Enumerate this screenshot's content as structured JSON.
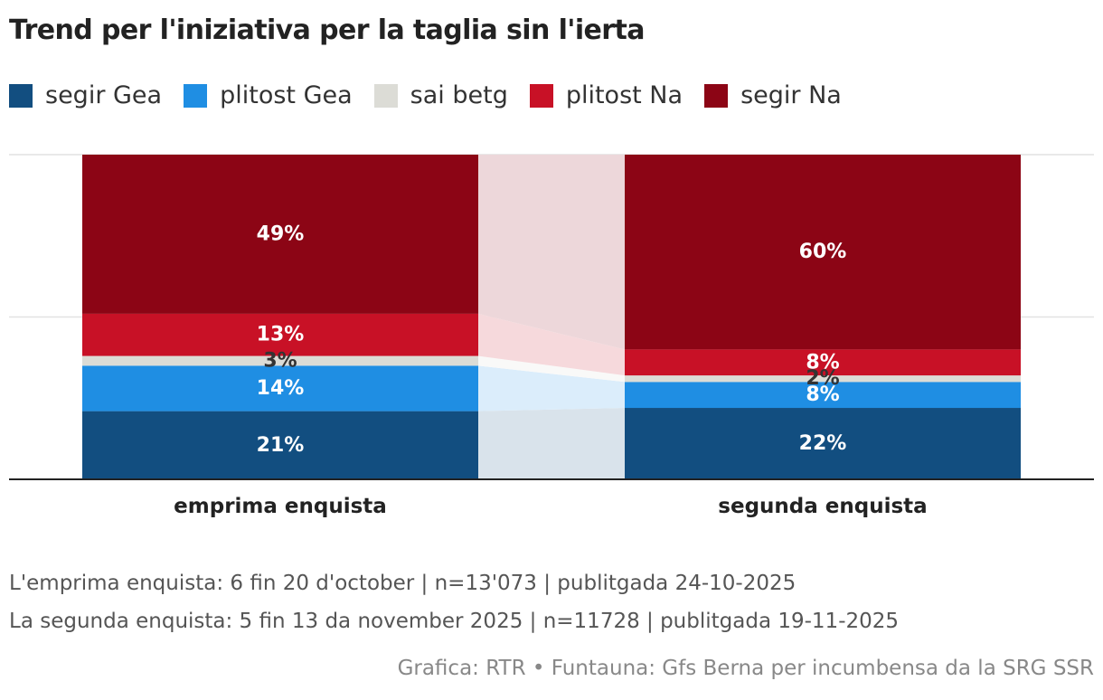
{
  "chart_data": {
    "type": "bar",
    "stacked": true,
    "percent": true,
    "title": "Trend per l'iniziativa per la taglia sin l'ierta",
    "categories": [
      "emprima enquista",
      "segunda enquista"
    ],
    "series": [
      {
        "name": "segir Gea",
        "color": "#124e80",
        "values": [
          21,
          22
        ]
      },
      {
        "name": "plitost Gea",
        "color": "#1f8ee3",
        "values": [
          14,
          8
        ]
      },
      {
        "name": "sai betg",
        "color": "#dcdcd6",
        "values": [
          3,
          2
        ]
      },
      {
        "name": "plitost Na",
        "color": "#c81126",
        "values": [
          13,
          8
        ]
      },
      {
        "name": "segir Na",
        "color": "#8c0515",
        "values": [
          49,
          60
        ]
      }
    ],
    "ylim": [
      0,
      100
    ],
    "grid": true,
    "legend_position": "top-left"
  },
  "notes": [
    "L'emprima enquista: 6 fin 20 d'october | n=13'073 | publitgada 24-10-2025",
    "La segunda enquista: 5 fin 13 da november 2025 | n=11728 | publitgada 19-11-2025"
  ],
  "source": "Grafica: RTR • Funtauna: Gfs Berna per incumbensa da la SRG SSR"
}
